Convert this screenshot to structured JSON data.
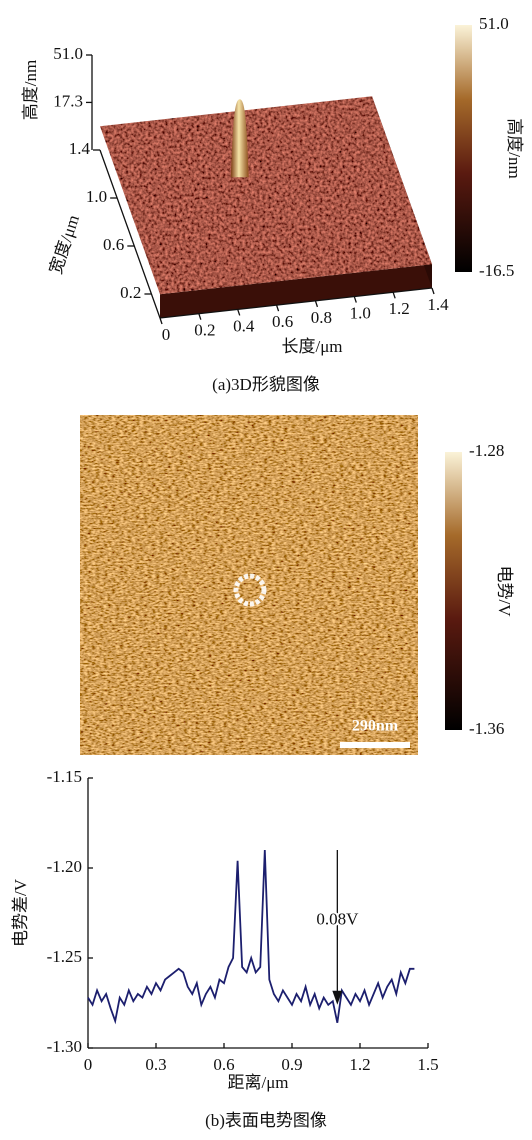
{
  "chart_data": [
    {
      "type": "surface3d",
      "caption": "(a)3D形貌图像",
      "xlabel": "长度/μm",
      "ylabel": "宽度/μm",
      "zlabel": "高度/nm",
      "xlim": [
        0,
        1.4
      ],
      "xticks": [
        0,
        0.2,
        0.4,
        0.6,
        0.8,
        {
          "value": 1,
          "label": "1.0"
        },
        1.2,
        1.4
      ],
      "ylim": [
        0,
        1.4
      ],
      "yticks": [
        0.2,
        0.6,
        {
          "value": 1,
          "label": "1.0"
        },
        1.4
      ],
      "zlim": [
        -16.5,
        51
      ],
      "zticks": [
        {
          "value": 51,
          "label": "51.0"
        },
        17.3
      ],
      "colorbar": {
        "label": "高度/nm",
        "clim": [
          -16.5,
          51
        ],
        "ticks": [
          {
            "value": 51,
            "label": "51.0"
          },
          -16.5
        ]
      }
    },
    {
      "type": "image",
      "scalebar": "290nm",
      "colorbar": {
        "label": "电势/V",
        "clim": [
          -1.36,
          -1.28
        ],
        "ticks": [
          -1.28,
          -1.36
        ]
      }
    },
    {
      "type": "line",
      "caption": "(b)表面电势图像",
      "xlabel": "距离/μm",
      "ylabel": "电势差/V",
      "xlim": [
        0,
        1.5
      ],
      "xticks": [
        0,
        0.3,
        0.6,
        0.9,
        1.2,
        1.5
      ],
      "ylim": [
        -1.3,
        -1.15
      ],
      "yticks": [
        {
          "value": -1.3,
          "label": "-1.30"
        },
        -1.25,
        {
          "value": -1.2,
          "label": "-1.20"
        },
        -1.15
      ],
      "annotation": {
        "text": "0.08V",
        "x": 1.1,
        "y_from": -1.2,
        "y_to": -1.276
      },
      "series": [
        {
          "color": "#1c1f6e",
          "x": [
            0,
            0.02,
            0.04,
            0.06,
            0.08,
            0.1,
            0.12,
            0.14,
            0.16,
            0.18,
            0.2,
            0.22,
            0.24,
            0.26,
            0.28,
            0.3,
            0.32,
            0.34,
            0.36,
            0.38,
            0.4,
            0.42,
            0.44,
            0.46,
            0.48,
            0.5,
            0.52,
            0.54,
            0.56,
            0.58,
            0.6,
            0.62,
            0.64,
            0.66,
            0.68,
            0.7,
            0.72,
            0.74,
            0.76,
            0.78,
            0.8,
            0.82,
            0.84,
            0.86,
            0.88,
            0.9,
            0.92,
            0.94,
            0.96,
            0.98,
            1,
            1.02,
            1.04,
            1.06,
            1.08,
            1.1,
            1.12,
            1.14,
            1.16,
            1.18,
            1.2,
            1.22,
            1.24,
            1.26,
            1.28,
            1.3,
            1.32,
            1.34,
            1.36,
            1.38,
            1.4,
            1.42,
            1.44
          ],
          "values": [
            -1.272,
            -1.276,
            -1.268,
            -1.274,
            -1.27,
            -1.278,
            -1.285,
            -1.272,
            -1.276,
            -1.268,
            -1.274,
            -1.27,
            -1.272,
            -1.266,
            -1.27,
            -1.264,
            -1.268,
            -1.262,
            -1.26,
            -1.258,
            -1.256,
            -1.258,
            -1.266,
            -1.27,
            -1.264,
            -1.276,
            -1.27,
            -1.266,
            -1.272,
            -1.262,
            -1.264,
            -1.255,
            -1.25,
            -1.196,
            -1.255,
            -1.258,
            -1.25,
            -1.258,
            -1.255,
            -1.19,
            -1.262,
            -1.27,
            -1.274,
            -1.268,
            -1.272,
            -1.276,
            -1.27,
            -1.274,
            -1.266,
            -1.276,
            -1.27,
            -1.278,
            -1.272,
            -1.276,
            -1.274,
            -1.286,
            -1.268,
            -1.272,
            -1.276,
            -1.27,
            -1.274,
            -1.268,
            -1.276,
            -1.27,
            -1.264,
            -1.272,
            -1.266,
            -1.262,
            -1.27,
            -1.258,
            -1.264,
            -1.256,
            -1.256
          ]
        }
      ]
    }
  ]
}
